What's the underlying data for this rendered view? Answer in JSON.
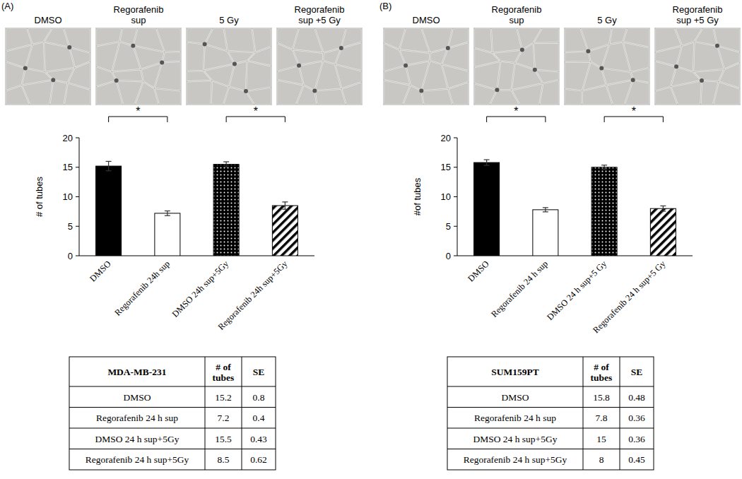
{
  "chart_data": [
    {
      "type": "bar",
      "y_label": "# of tubes",
      "categories": [
        "DMSO",
        "Regorafenib 24h sup",
        "DMSO 24h sup+5Gy",
        "Regorafenib 24h sup+5Gy"
      ],
      "values": [
        15.2,
        7.2,
        15.5,
        8.5
      ],
      "errors": [
        0.8,
        0.4,
        0.43,
        0.62
      ],
      "colors": [
        "#000000",
        "#ffffff",
        "#000000",
        "#000000"
      ],
      "ylim": [
        0,
        20
      ],
      "yticks": [
        0,
        5,
        10,
        15,
        20
      ],
      "annotations": [
        {
          "text": "*",
          "between": [
            "DMSO",
            "Regorafenib 24h sup"
          ]
        },
        {
          "text": "*",
          "between": [
            "DMSO 24h sup+5Gy",
            "Regorafenib 24h sup+5Gy"
          ]
        }
      ]
    },
    {
      "type": "bar",
      "y_label": "#of tubes",
      "categories": [
        "DMSO",
        "Regorafenib 24 h sup",
        "DMSO 24 h sup+5 Gy",
        "Regorafenib 24 h sup+5 Gy"
      ],
      "values": [
        15.8,
        7.8,
        15,
        8
      ],
      "errors": [
        0.48,
        0.36,
        0.36,
        0.45
      ],
      "colors": [
        "#000000",
        "#ffffff",
        "#000000",
        "#000000"
      ],
      "ylim": [
        0,
        20
      ],
      "yticks": [
        0,
        5,
        10,
        15,
        20
      ],
      "annotations": [
        {
          "text": "*",
          "between": [
            "DMSO",
            "Regorafenib 24 h sup"
          ]
        },
        {
          "text": "*",
          "between": [
            "DMSO 24 h sup+5 Gy",
            "Regorafenib 24 h sup+5 Gy"
          ]
        }
      ]
    }
  ],
  "panels": [
    {
      "label": "(A)",
      "image_labels": [
        "DMSO",
        "Regorafenib\nsup",
        "5 Gy",
        "Regorafenib\nsup +5 Gy"
      ],
      "table": {
        "header": [
          "MDA-MB-231",
          "# of tubes",
          "SE"
        ],
        "rows": [
          [
            "DMSO",
            "15.2",
            "0.8"
          ],
          [
            "Regorafenib  24 h sup",
            "7.2",
            "0.4"
          ],
          [
            "DMSO 24 h sup+5Gy",
            "15.5",
            "0.43"
          ],
          [
            "Regorafenib  24 h sup+5Gy",
            "8.5",
            "0.62"
          ]
        ]
      }
    },
    {
      "label": "(B)",
      "image_labels": [
        "DMSO",
        "Regorafenib\nsup",
        "5 Gy",
        "Regorafenib\nsup +5 Gy"
      ],
      "table": {
        "header": [
          "SUM159PT",
          "# of tubes",
          "SE"
        ],
        "rows": [
          [
            "DMSO",
            "15.8",
            "0.48"
          ],
          [
            "Regorafenib  24 h sup",
            "7.8",
            "0.36"
          ],
          [
            "DMSO 24 h sup+5Gy",
            "15",
            "0.36"
          ],
          [
            "Regorafenib  24 h sup+5Gy",
            "8",
            "0.45"
          ]
        ]
      }
    }
  ]
}
